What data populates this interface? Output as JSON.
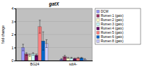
{
  "chart_data": {
    "type": "bar",
    "title": "gatX",
    "y_label": "fold change",
    "categories": [
      "BG24",
      "sdiA-"
    ],
    "series": [
      {
        "name": "DCM",
        "color": "#9999ff",
        "values": [
          1.0,
          0.1
        ],
        "errors": [
          0.25,
          0.05
        ]
      },
      {
        "name": "Rumen 1 (gatx)",
        "color": "#993366",
        "values": [
          0.5,
          0.3
        ],
        "errors": [
          0.1,
          0.1
        ]
      },
      {
        "name": "Rumen 2 (gatx)",
        "color": "#ffffcc",
        "values": [
          0.4,
          0.2
        ],
        "errors": [
          0.1,
          0.05
        ]
      },
      {
        "name": "Rumen 3 (gatx)",
        "color": "#ccffff",
        "values": [
          0.5,
          0.2
        ],
        "errors": [
          0.1,
          0.05
        ]
      },
      {
        "name": "Rumen 4 (gatx)",
        "color": "#660066",
        "values": [
          0.4,
          0.15
        ],
        "errors": [
          0.1,
          0.05
        ]
      },
      {
        "name": "Rumen 5 (gatx)",
        "color": "#ff8080",
        "values": [
          2.6,
          0.2
        ],
        "errors": [
          0.5,
          0.05
        ]
      },
      {
        "name": "Rumen 6 (gatx)",
        "color": "#0066cc",
        "values": [
          1.5,
          0.2
        ],
        "errors": [
          0.7,
          0.05
        ]
      },
      {
        "name": "Rumen 8 (gatx)",
        "color": "#ccccff",
        "values": [
          1.3,
          0.1
        ],
        "errors": [
          0.3,
          0.05
        ]
      }
    ],
    "ylim": [
      0,
      4
    ],
    "yticks": [
      0,
      1,
      2,
      3,
      4
    ],
    "grid": true,
    "legend": "right"
  }
}
